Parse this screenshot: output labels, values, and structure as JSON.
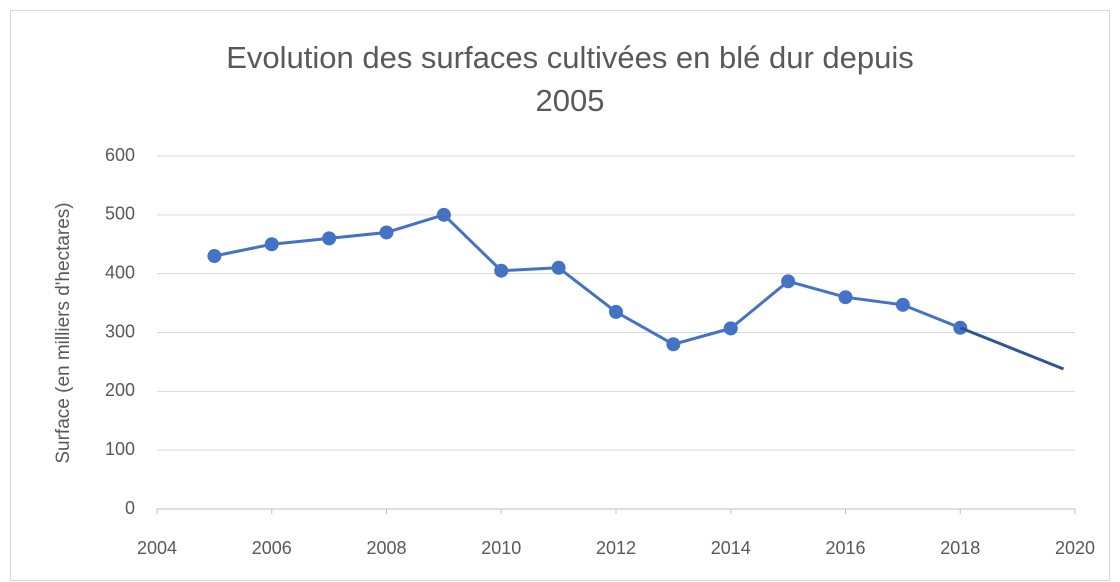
{
  "chart_data": {
    "type": "line",
    "title": [
      "Evolution des surfaces cultivées en blé dur depuis",
      "2005"
    ],
    "y_label": "Surface (en milliers d'hectares)",
    "series": [
      {
        "color": "#4472c4",
        "markers": true,
        "x": [
          2005,
          2006,
          2007,
          2008,
          2009,
          2010,
          2011,
          2012,
          2013,
          2014,
          2015,
          2016,
          2017,
          2018
        ],
        "values": [
          430,
          450,
          460,
          470,
          500,
          405,
          410,
          335,
          280,
          307,
          387,
          360,
          347,
          308
        ]
      },
      {
        "color": "#2f5597",
        "markers": false,
        "x": [
          2018,
          2019.8
        ],
        "values": [
          308,
          238
        ]
      }
    ],
    "xlim": [
      2004,
      2020
    ],
    "xticks": [
      2004,
      2006,
      2008,
      2010,
      2012,
      2014,
      2016,
      2018,
      2020
    ],
    "ylim": [
      0,
      600
    ],
    "yticks": [
      0,
      100,
      200,
      300,
      400,
      500,
      600
    ],
    "grid": true
  }
}
